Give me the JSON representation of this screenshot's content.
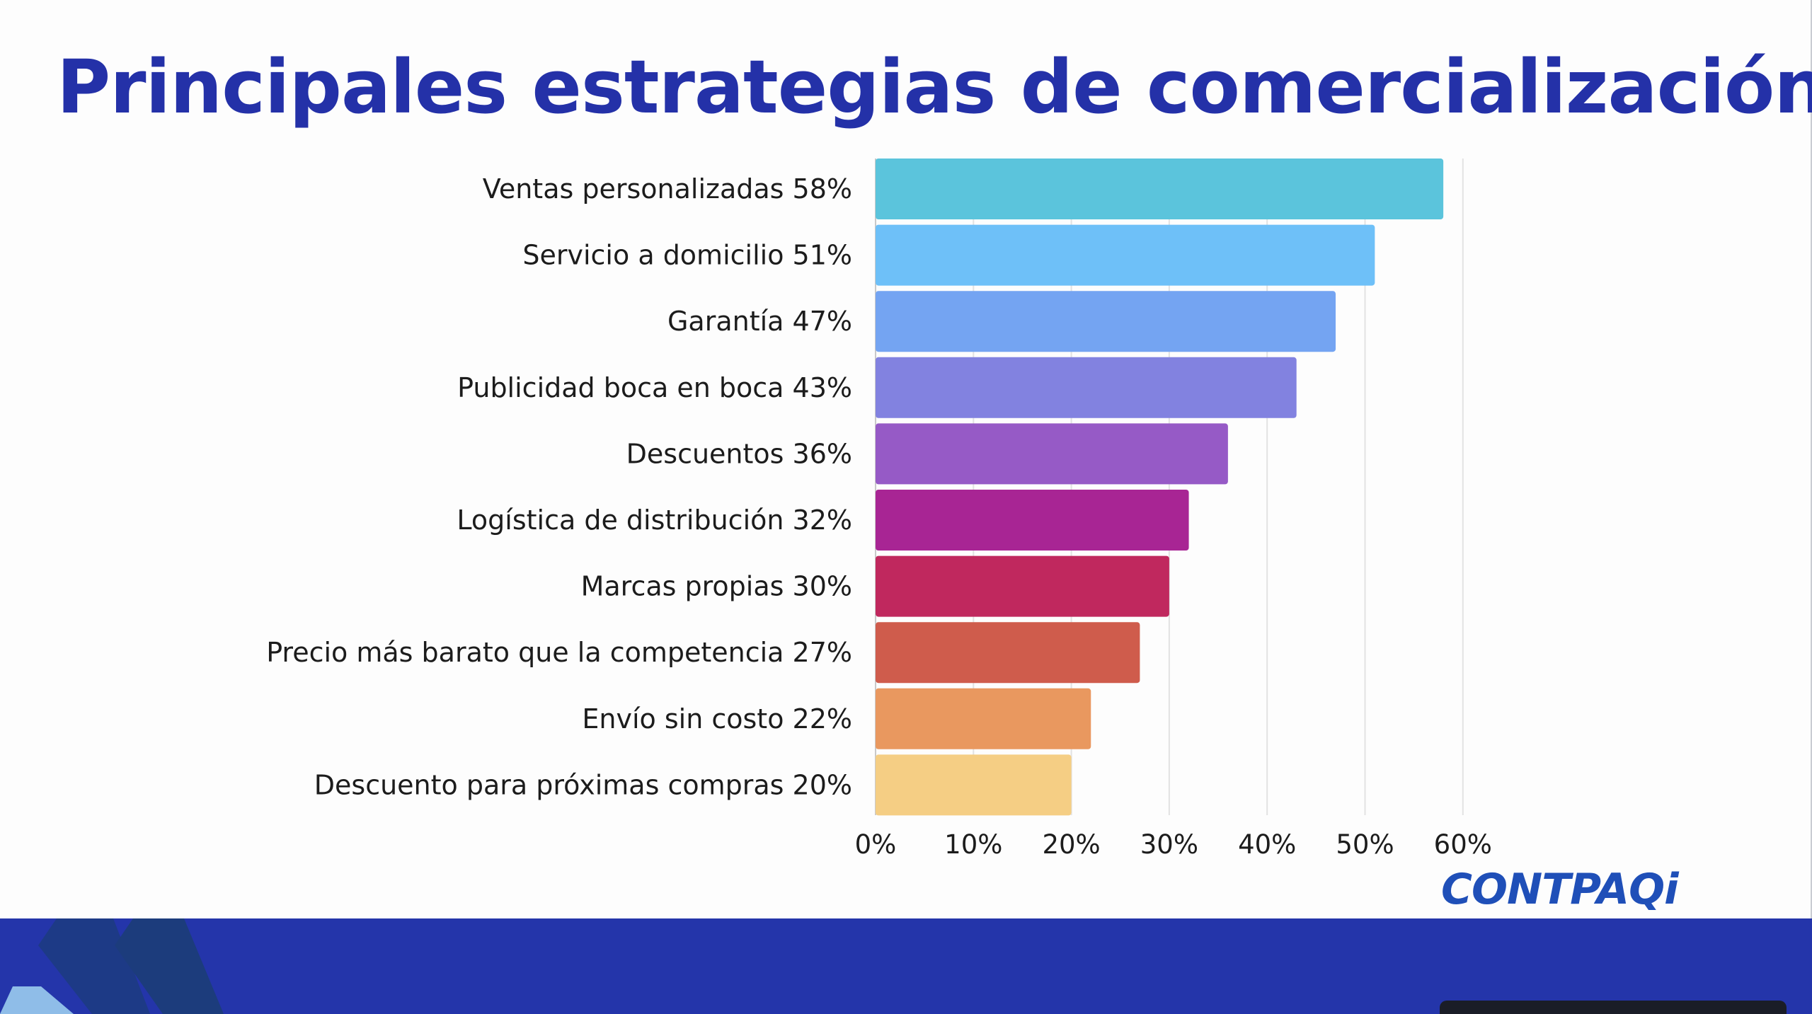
{
  "title": "Principales estrategias de comercialización",
  "logo_text": "CONTPAQi",
  "colors": {
    "title": "#2431a8",
    "footer": "#2435aa",
    "logo": "#1f4fb8"
  },
  "chart_data": {
    "type": "bar",
    "orientation": "horizontal",
    "title": "",
    "xlabel": "",
    "ylabel": "",
    "categories": [
      "Ventas personalizadas 58%",
      "Servicio a domicilio 51%",
      "Garantía 47%",
      "Publicidad boca en boca 43%",
      "Descuentos 36%",
      "Logística de distribución 32%",
      "Marcas propias 30%",
      "Precio más barato que la competencia 27%",
      "Envío sin costo 22%",
      "Descuento para próximas compras 20%"
    ],
    "values": [
      58,
      51,
      47,
      43,
      36,
      32,
      30,
      27,
      22,
      20
    ],
    "bar_colors": [
      "#5bc4dc",
      "#6ec0f8",
      "#74a4f2",
      "#8282e0",
      "#965ac6",
      "#a82594",
      "#c0285e",
      "#cf5c4c",
      "#e9985f",
      "#f5ce84"
    ],
    "xlim": [
      0,
      60
    ],
    "xticks": [
      0,
      10,
      20,
      30,
      40,
      50,
      60
    ],
    "xtick_labels": [
      "0%",
      "10%",
      "20%",
      "30%",
      "40%",
      "50%",
      "60%"
    ],
    "grid": true
  }
}
